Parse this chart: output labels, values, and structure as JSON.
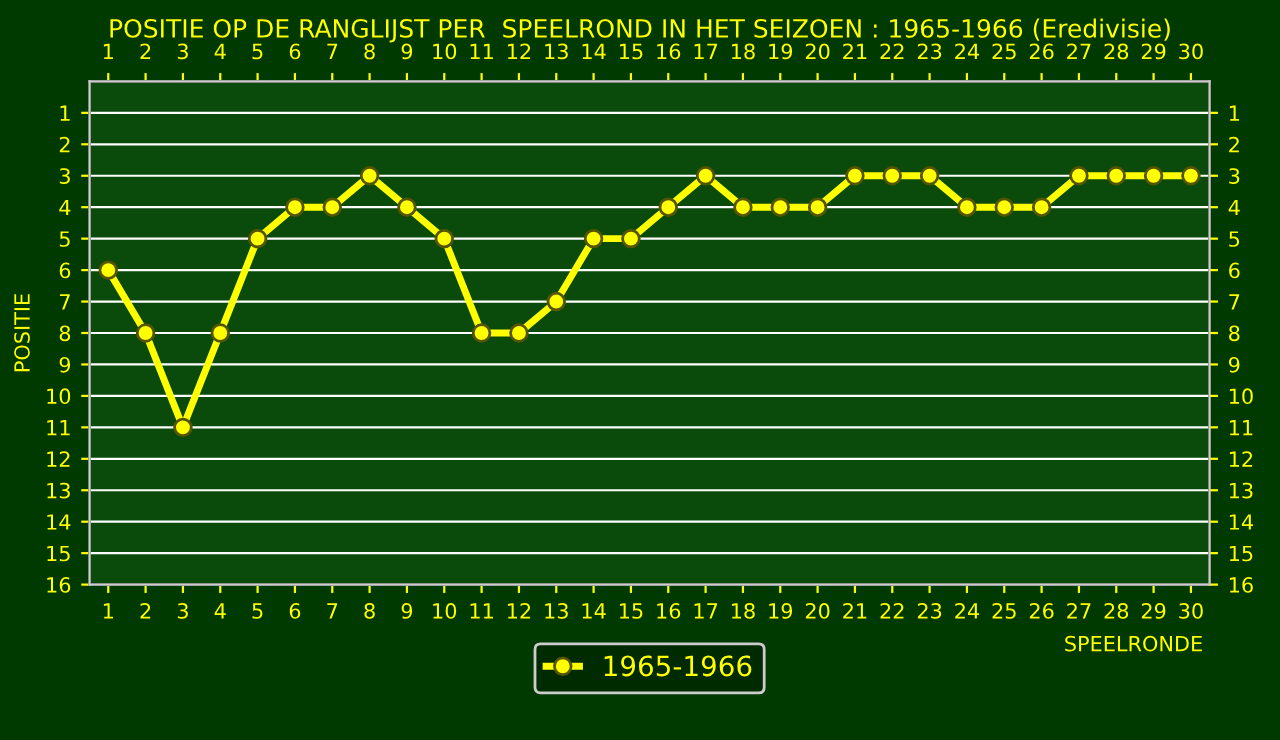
{
  "chart_data": {
    "type": "line",
    "title": "POSITIE OP DE RANGLIJST PER  SPEELROND IN HET SEIZOEN : 1965-1966 (Eredivisie)",
    "xlabel": "SPEELRONDE",
    "ylabel": "POSITIE",
    "x": [
      1,
      2,
      3,
      4,
      5,
      6,
      7,
      8,
      9,
      10,
      11,
      12,
      13,
      14,
      15,
      16,
      17,
      18,
      19,
      20,
      21,
      22,
      23,
      24,
      25,
      26,
      27,
      28,
      29,
      30
    ],
    "series": [
      {
        "name": "1965-1966",
        "color": "#ffff00",
        "values": [
          6,
          8,
          11,
          8,
          5,
          4,
          4,
          3,
          4,
          5,
          8,
          8,
          7,
          5,
          5,
          4,
          3,
          4,
          4,
          4,
          3,
          3,
          3,
          4,
          4,
          4,
          3,
          3,
          3,
          3
        ]
      }
    ],
    "xlim": [
      0.5,
      30.5
    ],
    "xticks": [
      1,
      2,
      3,
      4,
      5,
      6,
      7,
      8,
      9,
      10,
      11,
      12,
      13,
      14,
      15,
      16,
      17,
      18,
      19,
      20,
      21,
      22,
      23,
      24,
      25,
      26,
      27,
      28,
      29,
      30
    ],
    "x2lim": [
      0.5,
      30.5
    ],
    "x2ticks": [
      1,
      2,
      3,
      4,
      5,
      6,
      7,
      8,
      9,
      10,
      11,
      12,
      13,
      14,
      15,
      16,
      17,
      18,
      19,
      20,
      21,
      22,
      23,
      24,
      25,
      26,
      27,
      28,
      29,
      30
    ],
    "ylim": [
      16,
      0
    ],
    "yticks": [
      1,
      2,
      3,
      4,
      5,
      6,
      7,
      8,
      9,
      10,
      11,
      12,
      13,
      14,
      15,
      16
    ],
    "y2lim": [
      16,
      0
    ],
    "y2ticks": [
      1,
      2,
      3,
      4,
      5,
      6,
      7,
      8,
      9,
      10,
      11,
      12,
      13,
      14,
      15,
      16
    ],
    "grid": "y",
    "legend": "bottom",
    "marker": "circle",
    "line_style": "solid"
  }
}
